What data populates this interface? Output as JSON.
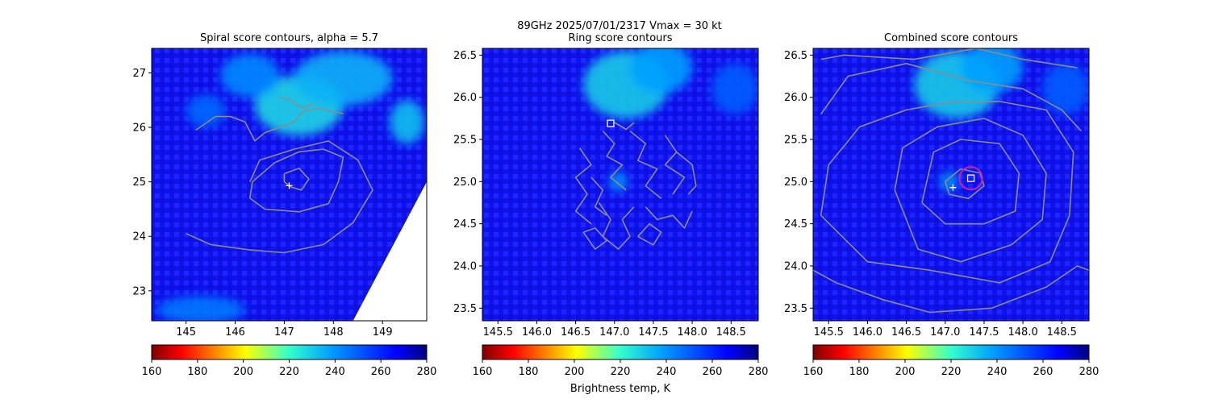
{
  "figure": {
    "suptitle_line1": "89GHz  2025/07/01/2317    Vmax = 30 kt",
    "colorbar_label": "Brightness temp, K"
  },
  "colors": {
    "contour": "#8c8c8c",
    "center_marker": "#ffffff",
    "circle_marker": "#cc22aa",
    "background_field": "#1a1aff"
  },
  "colormap": {
    "name": "jet_r",
    "range": [
      160,
      280
    ],
    "ticks": [
      160,
      180,
      200,
      220,
      240,
      260,
      280
    ]
  },
  "chart_data": [
    {
      "type": "heatmap",
      "title": "Spiral score contours, alpha =  5.7",
      "xlim": [
        144.3,
        149.9
      ],
      "ylim": [
        22.45,
        27.45
      ],
      "xticks": [
        145,
        146,
        147,
        148,
        149
      ],
      "yticks": [
        23,
        24,
        25,
        26,
        27
      ],
      "center_plus": [
        147.1,
        24.93
      ],
      "contours": [
        [
          [
            147.0,
            25.15
          ],
          [
            147.3,
            25.25
          ],
          [
            147.5,
            25.05
          ],
          [
            147.35,
            24.85
          ],
          [
            147.15,
            24.9
          ],
          [
            147.0,
            25.0
          ],
          [
            147.0,
            25.15
          ]
        ],
        [
          [
            146.35,
            25.0
          ],
          [
            146.8,
            25.35
          ],
          [
            147.3,
            25.55
          ],
          [
            147.8,
            25.6
          ],
          [
            148.2,
            25.45
          ],
          [
            148.1,
            25.0
          ],
          [
            147.9,
            24.6
          ],
          [
            147.3,
            24.45
          ],
          [
            146.6,
            24.5
          ],
          [
            146.3,
            24.7
          ],
          [
            146.35,
            25.0
          ]
        ],
        [
          [
            145.0,
            24.05
          ],
          [
            145.5,
            23.85
          ],
          [
            146.3,
            23.75
          ],
          [
            147.0,
            23.7
          ],
          [
            147.8,
            23.85
          ],
          [
            148.4,
            24.25
          ],
          [
            148.8,
            24.85
          ],
          [
            148.5,
            25.4
          ],
          [
            147.9,
            25.75
          ],
          [
            147.2,
            25.6
          ],
          [
            146.5,
            25.4
          ],
          [
            146.3,
            25.0
          ]
        ],
        [
          [
            145.2,
            25.95
          ],
          [
            145.6,
            26.2
          ],
          [
            145.9,
            26.2
          ],
          [
            146.2,
            26.1
          ],
          [
            146.4,
            25.75
          ],
          [
            146.6,
            25.9
          ],
          [
            146.9,
            26.0
          ],
          [
            147.2,
            26.1
          ],
          [
            147.4,
            26.3
          ],
          [
            147.7,
            26.35
          ],
          [
            148.2,
            26.25
          ]
        ],
        [
          [
            146.9,
            26.55
          ],
          [
            147.15,
            26.5
          ],
          [
            147.35,
            26.35
          ],
          [
            147.6,
            26.45
          ]
        ]
      ],
      "bright_regions": [
        {
          "x": 147.3,
          "y": 26.4,
          "rx": 0.9,
          "ry": 0.55,
          "temp": 228
        },
        {
          "x": 148.2,
          "y": 26.9,
          "rx": 1.0,
          "ry": 0.5,
          "temp": 235
        },
        {
          "x": 149.5,
          "y": 26.1,
          "rx": 0.35,
          "ry": 0.4,
          "temp": 232
        },
        {
          "x": 146.3,
          "y": 26.95,
          "rx": 0.6,
          "ry": 0.4,
          "temp": 242
        },
        {
          "x": 145.4,
          "y": 26.3,
          "rx": 0.4,
          "ry": 0.3,
          "temp": 248
        },
        {
          "x": 145.3,
          "y": 22.65,
          "rx": 0.9,
          "ry": 0.25,
          "temp": 245
        }
      ],
      "missing_region": [
        [
          149.9,
          22.45
        ],
        [
          149.9,
          25.0
        ],
        [
          148.4,
          22.45
        ]
      ],
      "markers": []
    },
    {
      "type": "heatmap",
      "title": "Ring score contours",
      "xlim": [
        145.3,
        148.85
      ],
      "ylim": [
        23.35,
        26.58
      ],
      "xticks": [
        145.5,
        146.0,
        146.5,
        147.0,
        147.5,
        148.0,
        148.5
      ],
      "yticks": [
        23.5,
        24.0,
        24.5,
        25.0,
        25.5,
        26.0,
        26.5
      ],
      "center_plus": null,
      "contours": [
        [
          [
            146.55,
            25.4
          ],
          [
            146.7,
            25.2
          ],
          [
            146.5,
            25.05
          ],
          [
            146.65,
            24.85
          ],
          [
            146.5,
            24.65
          ],
          [
            146.7,
            24.5
          ]
        ],
        [
          [
            146.85,
            25.6
          ],
          [
            147.0,
            25.45
          ],
          [
            146.9,
            25.3
          ],
          [
            147.1,
            25.2
          ],
          [
            146.95,
            25.05
          ],
          [
            147.15,
            24.9
          ]
        ],
        [
          [
            147.2,
            25.6
          ],
          [
            147.4,
            25.45
          ],
          [
            147.3,
            25.25
          ],
          [
            147.55,
            25.15
          ],
          [
            147.4,
            24.95
          ],
          [
            147.6,
            24.8
          ]
        ],
        [
          [
            147.65,
            25.55
          ],
          [
            147.8,
            25.35
          ],
          [
            147.65,
            25.2
          ],
          [
            147.9,
            25.05
          ],
          [
            147.75,
            24.85
          ]
        ],
        [
          [
            146.8,
            24.75
          ],
          [
            146.95,
            24.55
          ],
          [
            146.85,
            24.35
          ],
          [
            147.05,
            24.2
          ],
          [
            147.2,
            24.35
          ],
          [
            147.1,
            24.55
          ],
          [
            147.25,
            24.7
          ]
        ],
        [
          [
            146.6,
            24.4
          ],
          [
            146.75,
            24.2
          ],
          [
            146.9,
            24.3
          ],
          [
            146.75,
            24.45
          ],
          [
            146.6,
            24.4
          ]
        ],
        [
          [
            147.4,
            24.7
          ],
          [
            147.55,
            24.55
          ],
          [
            147.75,
            24.6
          ],
          [
            147.9,
            24.45
          ],
          [
            148.0,
            24.65
          ]
        ],
        [
          [
            147.3,
            24.35
          ],
          [
            147.5,
            24.25
          ],
          [
            147.6,
            24.4
          ],
          [
            147.45,
            24.5
          ],
          [
            147.3,
            24.35
          ]
        ],
        [
          [
            147.8,
            25.35
          ],
          [
            148.0,
            25.2
          ],
          [
            148.05,
            24.95
          ],
          [
            147.95,
            24.85
          ]
        ],
        [
          [
            146.7,
            25.05
          ],
          [
            146.85,
            24.9
          ],
          [
            146.75,
            24.7
          ],
          [
            146.9,
            24.6
          ]
        ],
        [
          [
            147.0,
            25.7
          ],
          [
            147.15,
            25.62
          ],
          [
            147.25,
            25.7
          ]
        ]
      ],
      "bright_regions": [
        {
          "x": 147.15,
          "y": 26.15,
          "rx": 0.55,
          "ry": 0.4,
          "temp": 230
        },
        {
          "x": 147.6,
          "y": 26.35,
          "rx": 0.4,
          "ry": 0.3,
          "temp": 238
        },
        {
          "x": 148.55,
          "y": 26.1,
          "rx": 0.3,
          "ry": 0.3,
          "temp": 250
        },
        {
          "x": 147.05,
          "y": 25.0,
          "rx": 0.12,
          "ry": 0.12,
          "temp": 240
        }
      ],
      "missing_region": null,
      "markers": [
        {
          "kind": "square",
          "x": 146.95,
          "y": 25.69
        }
      ]
    },
    {
      "type": "heatmap",
      "title": "Combined score contours",
      "xlim": [
        145.3,
        148.85
      ],
      "ylim": [
        23.35,
        26.58
      ],
      "xticks": [
        145.5,
        146.0,
        146.5,
        147.0,
        147.5,
        148.0,
        148.5
      ],
      "yticks": [
        23.5,
        24.0,
        24.5,
        25.0,
        25.5,
        26.0,
        26.5
      ],
      "center_plus": [
        147.1,
        24.93
      ],
      "contours": [
        [
          [
            147.0,
            25.0
          ],
          [
            147.2,
            25.15
          ],
          [
            147.45,
            25.1
          ],
          [
            147.5,
            24.95
          ],
          [
            147.3,
            24.8
          ],
          [
            147.05,
            24.85
          ],
          [
            147.0,
            25.0
          ]
        ],
        [
          [
            146.7,
            24.75
          ],
          [
            146.85,
            25.35
          ],
          [
            147.2,
            25.5
          ],
          [
            147.7,
            25.45
          ],
          [
            147.95,
            25.1
          ],
          [
            147.9,
            24.65
          ],
          [
            147.5,
            24.5
          ],
          [
            147.0,
            24.5
          ],
          [
            146.7,
            24.75
          ]
        ],
        [
          [
            146.35,
            24.9
          ],
          [
            146.45,
            25.4
          ],
          [
            146.9,
            25.65
          ],
          [
            147.5,
            25.75
          ],
          [
            148.0,
            25.55
          ],
          [
            148.3,
            25.1
          ],
          [
            148.25,
            24.55
          ],
          [
            147.85,
            24.25
          ],
          [
            147.2,
            24.05
          ],
          [
            146.65,
            24.2
          ],
          [
            146.35,
            24.9
          ]
        ],
        [
          [
            145.4,
            24.6
          ],
          [
            145.5,
            25.2
          ],
          [
            145.9,
            25.65
          ],
          [
            146.5,
            25.85
          ],
          [
            147.1,
            25.95
          ],
          [
            147.7,
            25.95
          ],
          [
            148.3,
            25.85
          ],
          [
            148.65,
            25.35
          ],
          [
            148.6,
            24.6
          ],
          [
            148.35,
            24.05
          ],
          [
            147.7,
            23.8
          ],
          [
            146.8,
            23.95
          ],
          [
            146.0,
            24.05
          ],
          [
            145.4,
            24.6
          ]
        ],
        [
          [
            145.3,
            23.95
          ],
          [
            145.6,
            23.8
          ],
          [
            146.2,
            23.6
          ],
          [
            146.8,
            23.45
          ],
          [
            147.6,
            23.5
          ],
          [
            148.3,
            23.75
          ],
          [
            148.7,
            24.0
          ],
          [
            148.85,
            23.95
          ]
        ],
        [
          [
            145.4,
            25.8
          ],
          [
            145.75,
            26.25
          ],
          [
            146.5,
            26.4
          ],
          [
            147.3,
            26.2
          ],
          [
            148.0,
            26.1
          ],
          [
            148.5,
            25.85
          ],
          [
            148.75,
            25.6
          ]
        ],
        [
          [
            145.4,
            26.45
          ],
          [
            145.7,
            26.5
          ],
          [
            146.6,
            26.45
          ],
          [
            147.4,
            26.58
          ],
          [
            148.0,
            26.45
          ],
          [
            148.7,
            26.35
          ]
        ]
      ],
      "bright_regions": [
        {
          "x": 147.15,
          "y": 26.15,
          "rx": 0.55,
          "ry": 0.4,
          "temp": 230
        },
        {
          "x": 147.6,
          "y": 26.35,
          "rx": 0.4,
          "ry": 0.3,
          "temp": 238
        },
        {
          "x": 148.55,
          "y": 26.1,
          "rx": 0.3,
          "ry": 0.3,
          "temp": 250
        },
        {
          "x": 147.05,
          "y": 25.0,
          "rx": 0.12,
          "ry": 0.12,
          "temp": 240
        }
      ],
      "missing_region": null,
      "markers": [
        {
          "kind": "circle",
          "x": 147.33,
          "y": 25.04
        },
        {
          "kind": "square",
          "x": 147.33,
          "y": 25.04
        }
      ]
    }
  ]
}
